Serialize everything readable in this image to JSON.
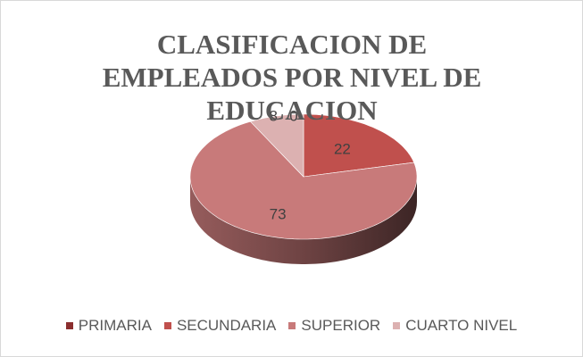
{
  "chart_data": {
    "type": "pie3d",
    "title": "CLASIFICACION DE EMPLEADOS POR NIVEL DE EDUCACION",
    "categories": [
      "PRIMARIA",
      "SECUNDARIA",
      "SUPERIOR",
      "CUARTO NIVEL"
    ],
    "values": [
      0,
      22,
      73,
      8
    ],
    "colors": [
      "#8b2e2e",
      "#c0504d",
      "#c87a7a",
      "#dcb1b1"
    ],
    "legend": "bottom"
  }
}
